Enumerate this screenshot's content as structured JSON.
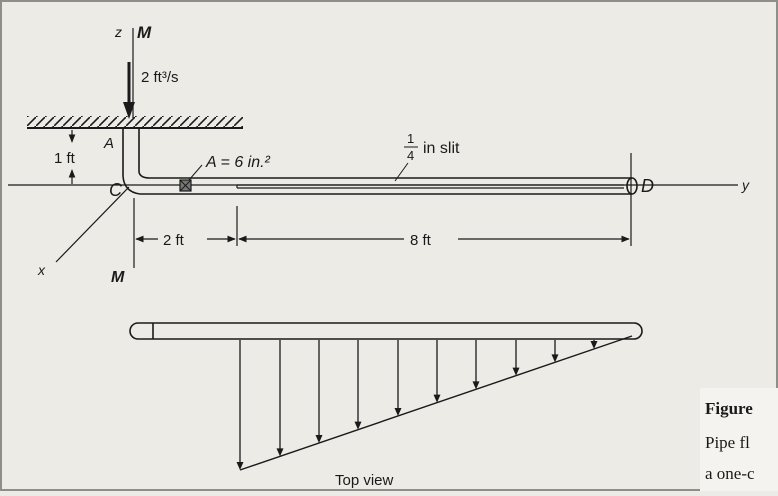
{
  "labels": {
    "z": "z",
    "M_top": "M",
    "flow_rate": "2 ft³/s",
    "A": "A",
    "height": "1 ft",
    "C": "C",
    "area": "A = 6 in.²",
    "slit_frac_num": "1",
    "slit_frac_den": "4",
    "slit_text": "in slit",
    "D": "D",
    "y": "y",
    "x": "x",
    "M_mid": "M",
    "dim_2ft": "2 ft",
    "dim_8ft": "8 ft",
    "top_view": "Top view"
  },
  "caption": {
    "title": "Figure",
    "line1": "Pipe fl",
    "line2": "a one-c"
  },
  "colors": {
    "background": "#ecebe6",
    "ink": "#1a1a1a",
    "caption_bg": "#f4f3ef"
  }
}
